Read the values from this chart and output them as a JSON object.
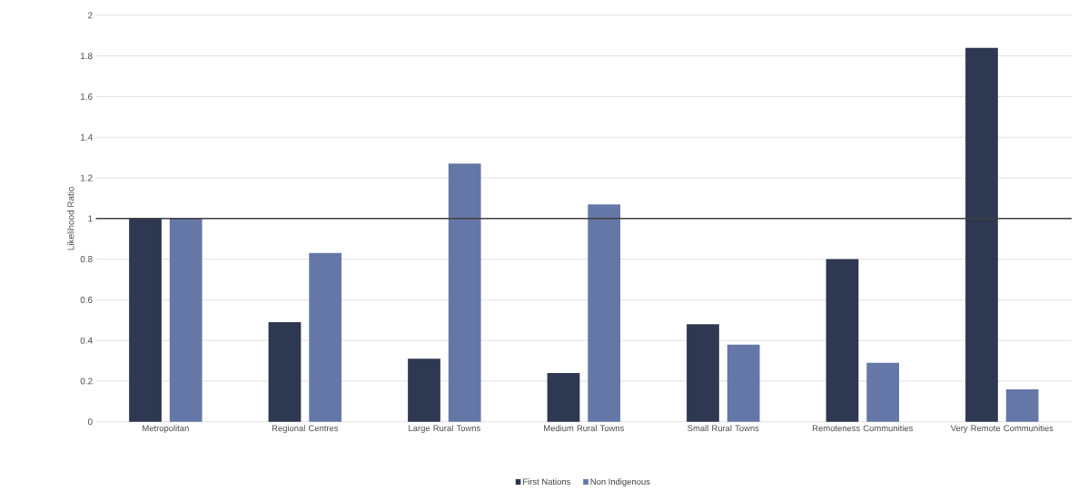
{
  "chart_data": {
    "type": "bar",
    "ylabel": "Likelihood Ratio",
    "categories": [
      "Metropolitan",
      "Regional Centres",
      "Large Rural Towns",
      "Medium Rural Towns",
      "Small Rural Towns",
      "Remoteness Communities",
      "Very Remote Communities"
    ],
    "series": [
      {
        "name": "First Nations",
        "color": "#2e3850",
        "values": [
          1.0,
          0.49,
          0.31,
          0.24,
          0.48,
          0.8,
          1.84
        ]
      },
      {
        "name": "Non Indigenous",
        "color": "#6577a6",
        "values": [
          1.0,
          0.83,
          1.27,
          1.07,
          0.38,
          0.29,
          0.16
        ]
      }
    ],
    "ylim": [
      0,
      2
    ],
    "yticks": [
      0,
      0.2,
      0.4,
      0.6,
      0.8,
      1,
      1.2,
      1.4,
      1.6,
      1.8,
      2
    ],
    "ref_lines": [
      {
        "axis": "y",
        "value": 1,
        "color": "#404040"
      }
    ],
    "grid": "y",
    "legend": "bottom"
  }
}
